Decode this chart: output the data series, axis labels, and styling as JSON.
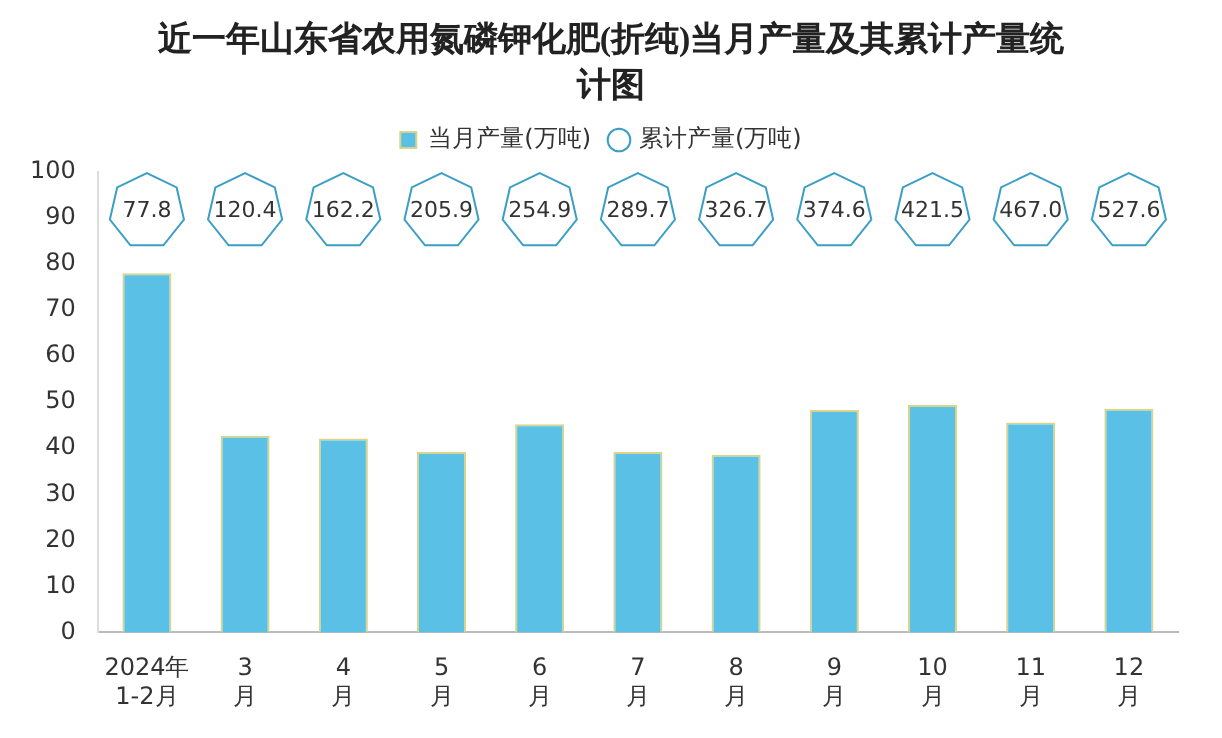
{
  "chart_data": {
    "type": "bar",
    "title": "近一年山东省农用氮磷钾化肥(折纯)当月产量及其累计产量统计图",
    "categories": [
      "2024年1-2月",
      "3月",
      "4月",
      "5月",
      "6月",
      "7月",
      "8月",
      "9月",
      "10月",
      "11月",
      "12月"
    ],
    "series": [
      {
        "name": "当月产量(万吨)",
        "color": "#5bc0e6",
        "values": [
          78,
          42.7,
          42.1,
          39.2,
          45.2,
          39.2,
          38.6,
          48.3,
          49.4,
          45.6,
          48.6
        ]
      },
      {
        "name": "累计产量(万吨)",
        "type": "scatter",
        "color": "#3a9fc4",
        "values": [
          null,
          null,
          null,
          null,
          null,
          null,
          null,
          null,
          null,
          null,
          null
        ]
      }
    ],
    "annotations": [
      {
        "text": "77.8",
        "x": "2024年1-2月"
      },
      {
        "text": "120.4",
        "x": "3月"
      },
      {
        "text": "162.2",
        "x": "4月"
      },
      {
        "text": "205.9",
        "x": "5月"
      },
      {
        "text": "254.9",
        "x": "6月"
      },
      {
        "text": "289.7",
        "x": "7月"
      },
      {
        "text": "326.7",
        "x": "8月"
      },
      {
        "text": "374.6",
        "x": "9月"
      },
      {
        "text": "421.5",
        "x": "10月"
      },
      {
        "text": "467.0",
        "x": "11月"
      },
      {
        "text": "527.6",
        "x": "12月"
      }
    ],
    "ylim": [
      0,
      100
    ],
    "yticks": [
      0,
      10,
      20,
      30,
      40,
      50,
      60,
      70,
      80,
      90,
      100
    ],
    "grid": false,
    "legend": "top"
  }
}
